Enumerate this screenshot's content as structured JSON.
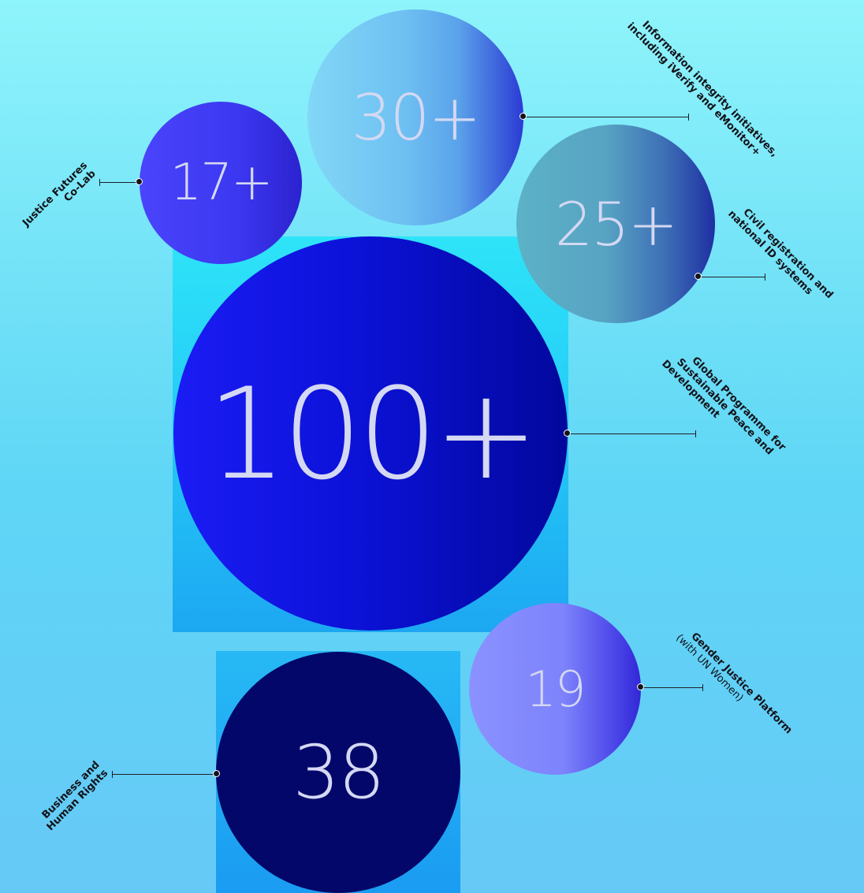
{
  "bubbles": {
    "b100": "100+",
    "b30": "30+",
    "b17": "17+",
    "b25": "25+",
    "b19": "19",
    "b38": "38"
  },
  "labels": {
    "justice": [
      "Justice Futures",
      "Co-Lab"
    ],
    "information": [
      "Information integrity initiatives,",
      "including iVerify and eMonitor+"
    ],
    "civil": [
      "Civil registration and",
      "national ID systems"
    ],
    "global": [
      "Global Programme for",
      "Sustainable Peace and",
      "Development"
    ],
    "gender": [
      "Gender Justice Platform",
      "(with UN Women)"
    ],
    "business": [
      "Business and",
      "Human Rights"
    ]
  },
  "colors": {
    "bubble_100": "#0c12d8",
    "bubble_38": "#03076a",
    "background": "#6fe0f7"
  }
}
